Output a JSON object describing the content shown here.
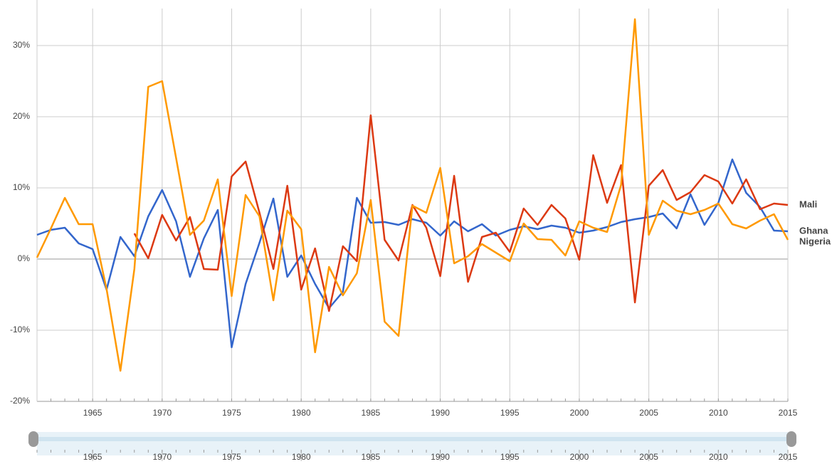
{
  "chart_data": {
    "type": "line",
    "x": [
      1961,
      1962,
      1963,
      1964,
      1965,
      1966,
      1967,
      1968,
      1969,
      1970,
      1971,
      1972,
      1973,
      1974,
      1975,
      1976,
      1977,
      1978,
      1979,
      1980,
      1981,
      1982,
      1983,
      1984,
      1985,
      1986,
      1987,
      1988,
      1989,
      1990,
      1991,
      1992,
      1993,
      1994,
      1995,
      1996,
      1997,
      1998,
      1999,
      2000,
      2001,
      2002,
      2003,
      2004,
      2005,
      2006,
      2007,
      2008,
      2009,
      2010,
      2011,
      2012,
      2013,
      2014,
      2015
    ],
    "series": [
      {
        "name": "Ghana",
        "color": "#3366cc",
        "values": [
          3.4,
          4.1,
          4.4,
          2.2,
          1.4,
          -4.3,
          3.1,
          0.4,
          6.0,
          9.7,
          5.3,
          -2.5,
          2.9,
          6.9,
          -12.4,
          -3.5,
          2.3,
          8.5,
          -2.5,
          0.5,
          -3.5,
          -6.9,
          -4.6,
          8.6,
          5.1,
          5.2,
          4.8,
          5.6,
          5.1,
          3.3,
          5.3,
          3.9,
          4.9,
          3.3,
          4.1,
          4.6,
          4.2,
          4.7,
          4.4,
          3.7,
          4.0,
          4.5,
          5.2,
          5.6,
          5.9,
          6.4,
          4.3,
          9.1,
          4.8,
          7.9,
          14.0,
          9.3,
          7.3,
          4.0,
          3.9
        ]
      },
      {
        "name": "Mali",
        "color": "#dc3912",
        "values": [
          null,
          null,
          null,
          null,
          null,
          null,
          null,
          3.6,
          0.1,
          6.2,
          2.6,
          5.9,
          -1.4,
          -1.5,
          11.6,
          13.7,
          6.5,
          -1.4,
          10.3,
          -4.3,
          1.5,
          -7.3,
          1.8,
          -0.3,
          20.2,
          2.7,
          -0.2,
          7.6,
          4.4,
          -2.4,
          11.7,
          -3.2,
          3.1,
          3.7,
          1.0,
          7.1,
          4.8,
          7.6,
          5.7,
          -0.1,
          14.6,
          7.9,
          13.2,
          -6.1,
          10.3,
          12.5,
          8.3,
          9.4,
          11.8,
          10.9,
          7.8,
          11.2,
          7.0,
          7.8,
          7.6
        ]
      },
      {
        "name": "Nigeria",
        "color": "#ff9900",
        "values": [
          0.2,
          4.3,
          8.6,
          4.9,
          4.9,
          -4.2,
          -15.7,
          -1.4,
          24.2,
          25.0,
          14.2,
          3.4,
          5.4,
          11.2,
          -5.2,
          9.0,
          6.0,
          -5.8,
          6.8,
          4.2,
          -13.1,
          -1.1,
          -5.1,
          -2.0,
          8.3,
          -8.8,
          -10.8,
          7.5,
          6.5,
          12.8,
          -0.6,
          0.4,
          2.1,
          0.9,
          -0.3,
          5.0,
          2.8,
          2.7,
          0.5,
          5.3,
          4.4,
          3.8,
          10.4,
          33.7,
          3.4,
          8.2,
          6.8,
          6.3,
          6.9,
          7.8,
          4.9,
          4.3,
          5.4,
          6.3,
          2.7
        ]
      }
    ],
    "xlim": [
      1961,
      2015
    ],
    "xticks": [
      1965,
      1970,
      1975,
      1980,
      1985,
      1990,
      1995,
      2000,
      2005,
      2010,
      2015
    ],
    "ylim": [
      -20,
      36.4
    ],
    "yticks": [
      {
        "value": -20,
        "label": "-20%"
      },
      {
        "value": -10,
        "label": "-10%"
      },
      {
        "value": 0,
        "label": "0%"
      },
      {
        "value": 10,
        "label": "10%"
      },
      {
        "value": 20,
        "label": "20%"
      },
      {
        "value": 30,
        "label": "30%"
      }
    ],
    "grid": true
  }
}
